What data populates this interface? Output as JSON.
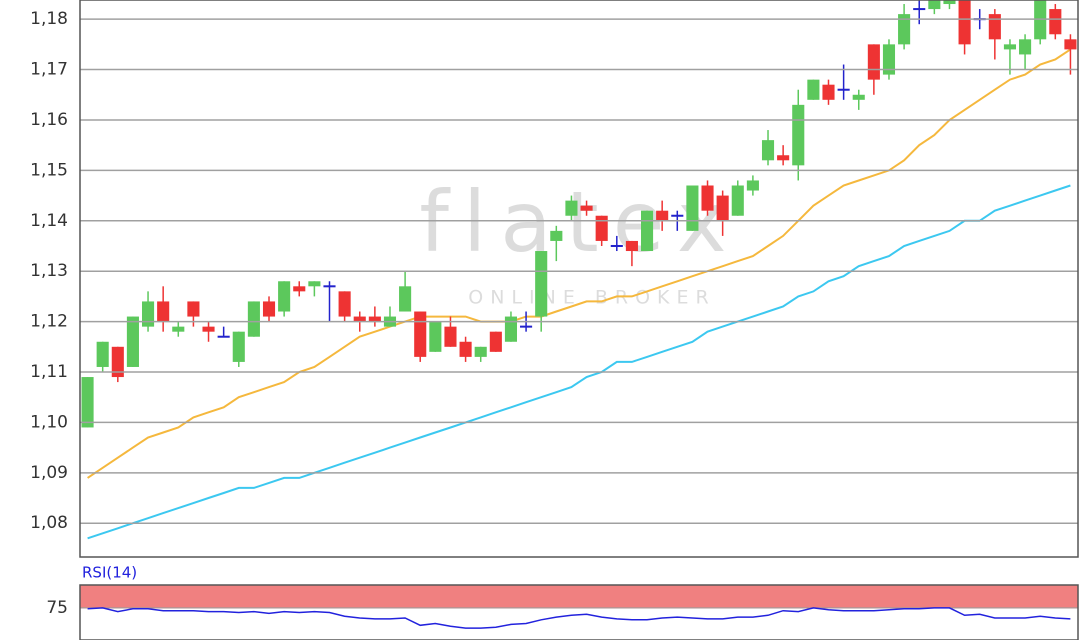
{
  "chart_data": [
    {
      "type": "candlestick",
      "watermark": [
        "flatex",
        "ONLINE BROKER"
      ],
      "open": [
        1.099,
        1.111,
        1.115,
        1.111,
        1.119,
        1.124,
        1.118,
        1.124,
        1.119,
        1.117,
        1.112,
        1.117,
        1.124,
        1.122,
        1.127,
        1.127,
        1.127,
        1.126,
        1.121,
        1.121,
        1.119,
        1.122,
        1.122,
        1.114,
        1.119,
        1.116,
        1.113,
        1.118,
        1.116,
        1.119,
        1.121,
        1.136,
        1.141,
        1.143,
        1.141,
        1.135,
        1.136,
        1.134,
        1.142,
        1.141,
        1.138,
        1.147,
        1.145,
        1.141,
        1.146,
        1.152,
        1.153,
        1.151,
        1.164,
        1.167,
        1.166,
        1.164,
        1.175,
        1.169,
        1.175,
        1.182,
        1.182,
        1.183,
        1.186,
        1.18,
        1.181,
        1.174,
        1.173,
        1.176,
        1.182,
        1.176
      ],
      "high": [
        1.109,
        1.116,
        1.115,
        1.121,
        1.126,
        1.127,
        1.12,
        1.124,
        1.12,
        1.119,
        1.118,
        1.124,
        1.125,
        1.128,
        1.128,
        1.128,
        1.128,
        1.126,
        1.122,
        1.123,
        1.123,
        1.13,
        1.122,
        1.12,
        1.121,
        1.117,
        1.115,
        1.118,
        1.122,
        1.122,
        1.134,
        1.139,
        1.145,
        1.144,
        1.141,
        1.137,
        1.136,
        1.142,
        1.144,
        1.142,
        1.147,
        1.148,
        1.146,
        1.148,
        1.149,
        1.158,
        1.155,
        1.166,
        1.168,
        1.168,
        1.171,
        1.166,
        1.175,
        1.176,
        1.183,
        1.184,
        1.186,
        1.188,
        1.187,
        1.182,
        1.182,
        1.176,
        1.177,
        1.186,
        1.183,
        1.177
      ],
      "low": [
        1.099,
        1.11,
        1.108,
        1.111,
        1.118,
        1.118,
        1.117,
        1.119,
        1.116,
        1.117,
        1.111,
        1.117,
        1.12,
        1.121,
        1.125,
        1.125,
        1.12,
        1.12,
        1.118,
        1.119,
        1.119,
        1.122,
        1.112,
        1.114,
        1.115,
        1.112,
        1.112,
        1.114,
        1.116,
        1.118,
        1.118,
        1.132,
        1.14,
        1.141,
        1.135,
        1.134,
        1.131,
        1.134,
        1.138,
        1.138,
        1.138,
        1.141,
        1.137,
        1.141,
        1.145,
        1.151,
        1.151,
        1.148,
        1.164,
        1.163,
        1.164,
        1.162,
        1.165,
        1.168,
        1.174,
        1.179,
        1.181,
        1.182,
        1.173,
        1.178,
        1.172,
        1.169,
        1.17,
        1.175,
        1.176,
        1.169
      ],
      "close": [
        1.109,
        1.116,
        1.109,
        1.121,
        1.124,
        1.12,
        1.119,
        1.121,
        1.118,
        1.117,
        1.118,
        1.124,
        1.121,
        1.128,
        1.126,
        1.128,
        1.127,
        1.121,
        1.12,
        1.12,
        1.121,
        1.127,
        1.113,
        1.12,
        1.115,
        1.113,
        1.115,
        1.114,
        1.121,
        1.119,
        1.134,
        1.138,
        1.144,
        1.142,
        1.136,
        1.135,
        1.134,
        1.142,
        1.14,
        1.141,
        1.147,
        1.142,
        1.14,
        1.147,
        1.148,
        1.156,
        1.152,
        1.163,
        1.168,
        1.164,
        1.166,
        1.165,
        1.168,
        1.175,
        1.181,
        1.182,
        1.184,
        1.186,
        1.175,
        1.18,
        1.176,
        1.175,
        1.176,
        1.184,
        1.177,
        1.174
      ],
      "up_color": "#5cc85c",
      "down_color": "#ee3333",
      "flat_color": "#2222cc",
      "lines": [
        {
          "color": "#f5b83d",
          "values": [
            1.089,
            1.091,
            1.093,
            1.095,
            1.097,
            1.098,
            1.099,
            1.101,
            1.102,
            1.103,
            1.105,
            1.106,
            1.107,
            1.108,
            1.11,
            1.111,
            1.113,
            1.115,
            1.117,
            1.118,
            1.119,
            1.12,
            1.121,
            1.121,
            1.121,
            1.121,
            1.12,
            1.12,
            1.12,
            1.121,
            1.121,
            1.122,
            1.123,
            1.124,
            1.124,
            1.125,
            1.125,
            1.126,
            1.127,
            1.128,
            1.129,
            1.13,
            1.131,
            1.132,
            1.133,
            1.135,
            1.137,
            1.14,
            1.143,
            1.145,
            1.147,
            1.148,
            1.149,
            1.15,
            1.152,
            1.155,
            1.157,
            1.16,
            1.162,
            1.164,
            1.166,
            1.168,
            1.169,
            1.171,
            1.172,
            1.174
          ]
        },
        {
          "color": "#3cc8f0",
          "values": [
            1.077,
            1.078,
            1.079,
            1.08,
            1.081,
            1.082,
            1.083,
            1.084,
            1.085,
            1.086,
            1.087,
            1.087,
            1.088,
            1.089,
            1.089,
            1.09,
            1.091,
            1.092,
            1.093,
            1.094,
            1.095,
            1.096,
            1.097,
            1.098,
            1.099,
            1.1,
            1.101,
            1.102,
            1.103,
            1.104,
            1.105,
            1.106,
            1.107,
            1.109,
            1.11,
            1.112,
            1.112,
            1.113,
            1.114,
            1.115,
            1.116,
            1.118,
            1.119,
            1.12,
            1.121,
            1.122,
            1.123,
            1.125,
            1.126,
            1.128,
            1.129,
            1.131,
            1.132,
            1.133,
            1.135,
            1.136,
            1.137,
            1.138,
            1.14,
            1.14,
            1.142,
            1.143,
            1.144,
            1.145,
            1.146,
            1.147
          ]
        }
      ],
      "ylim": [
        1.0733,
        1.1838
      ],
      "yticks": [
        {
          "value": 1.08,
          "label": "1,08"
        },
        {
          "value": 1.09,
          "label": "1,09"
        },
        {
          "value": 1.1,
          "label": "1,10"
        },
        {
          "value": 1.11,
          "label": "1,11"
        },
        {
          "value": 1.12,
          "label": "1,12"
        },
        {
          "value": 1.13,
          "label": "1,13"
        },
        {
          "value": 1.14,
          "label": "1,14"
        },
        {
          "value": 1.15,
          "label": "1,15"
        },
        {
          "value": 1.16,
          "label": "1,16"
        },
        {
          "value": 1.17,
          "label": "1,17"
        },
        {
          "value": 1.18,
          "label": "1,18"
        }
      ],
      "grid": true
    },
    {
      "type": "line",
      "title": "RSI(14)",
      "color": "#2222dd",
      "values": [
        74,
        75,
        71,
        74,
        74,
        72,
        72,
        72,
        71,
        71,
        70,
        71,
        69,
        71,
        70,
        71,
        70,
        66,
        64,
        63,
        63,
        64,
        56,
        58,
        55,
        53,
        53,
        54,
        57,
        58,
        62,
        65,
        67,
        68,
        65,
        63,
        62,
        62,
        64,
        65,
        64,
        63,
        63,
        65,
        65,
        67,
        72,
        71,
        75,
        73,
        72,
        72,
        72,
        73,
        74,
        74,
        75,
        75,
        67,
        68,
        64,
        64,
        64,
        66,
        64,
        63
      ],
      "band": {
        "from": 75,
        "to": 100,
        "color": "#f08080"
      },
      "ylim": [
        40,
        100
      ],
      "yticks": [
        75
      ]
    }
  ]
}
